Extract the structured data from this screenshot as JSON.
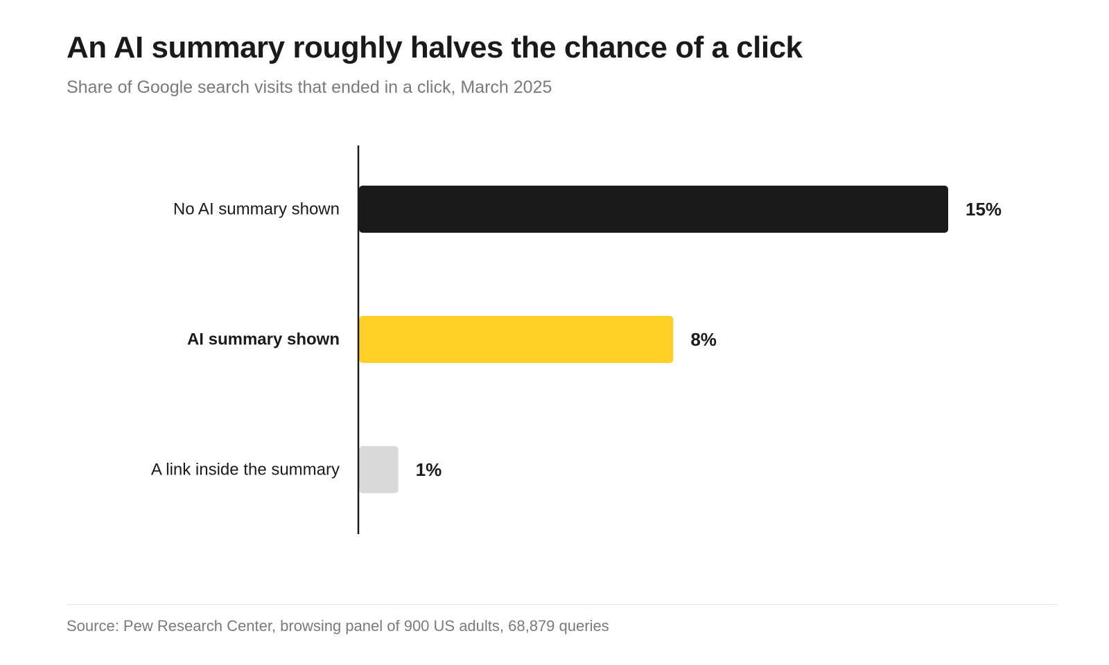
{
  "chart_data": {
    "type": "bar",
    "orientation": "horizontal",
    "title": "An AI summary roughly halves the chance of a click",
    "subtitle": "Share of Google search visits that ended in a click, March 2025",
    "categories": [
      "No AI summary shown",
      "AI summary shown",
      "A link inside the summary"
    ],
    "values": [
      15,
      8,
      1
    ],
    "value_labels": [
      "15%",
      "8%",
      "1%"
    ],
    "unit": "%",
    "xlim": [
      0,
      15
    ],
    "highlight_category": "AI summary shown",
    "bar_colors": [
      "#1a1a1a",
      "#ffd027",
      "#d9d9d9"
    ],
    "grid": false,
    "legend": "none",
    "source": "Source: Pew Research Center, browsing panel of 900 US adults, 68,879 queries"
  }
}
